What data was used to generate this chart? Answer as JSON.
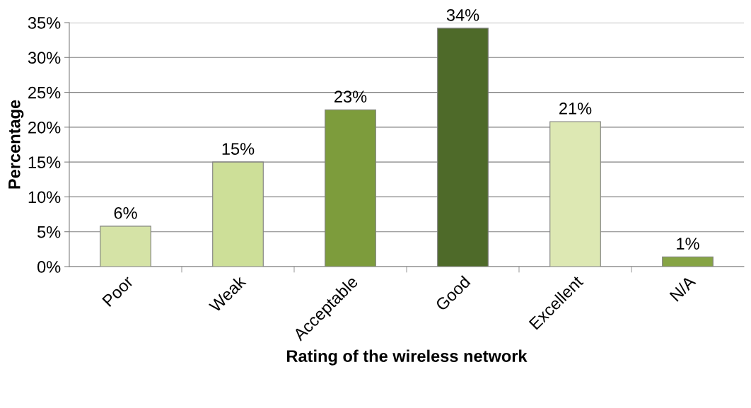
{
  "chart_data": {
    "type": "bar",
    "xlabel": "Rating of the wireless network",
    "ylabel": "Percentage",
    "categories": [
      "Poor",
      "Weak",
      "Acceptable",
      "Good",
      "Excellent",
      "N/A"
    ],
    "values": [
      5.8,
      15,
      22.5,
      34.2,
      20.8,
      1.4
    ],
    "value_labels": [
      "6%",
      "15%",
      "23%",
      "34%",
      "21%",
      "1%"
    ],
    "colors": [
      "#d5e3a6",
      "#cddf98",
      "#7d9c3c",
      "#4e6a29",
      "#dde8b3",
      "#86a444"
    ],
    "ylim": [
      0,
      35
    ],
    "yticks": [
      {
        "value": 0,
        "label": "0%"
      },
      {
        "value": 5,
        "label": "5%"
      },
      {
        "value": 10,
        "label": "10%"
      },
      {
        "value": 15,
        "label": "15%"
      },
      {
        "value": 20,
        "label": "20%"
      },
      {
        "value": 25,
        "label": "25%"
      },
      {
        "value": 30,
        "label": "30%"
      },
      {
        "value": 35,
        "label": "35%"
      }
    ],
    "grid": "y"
  }
}
